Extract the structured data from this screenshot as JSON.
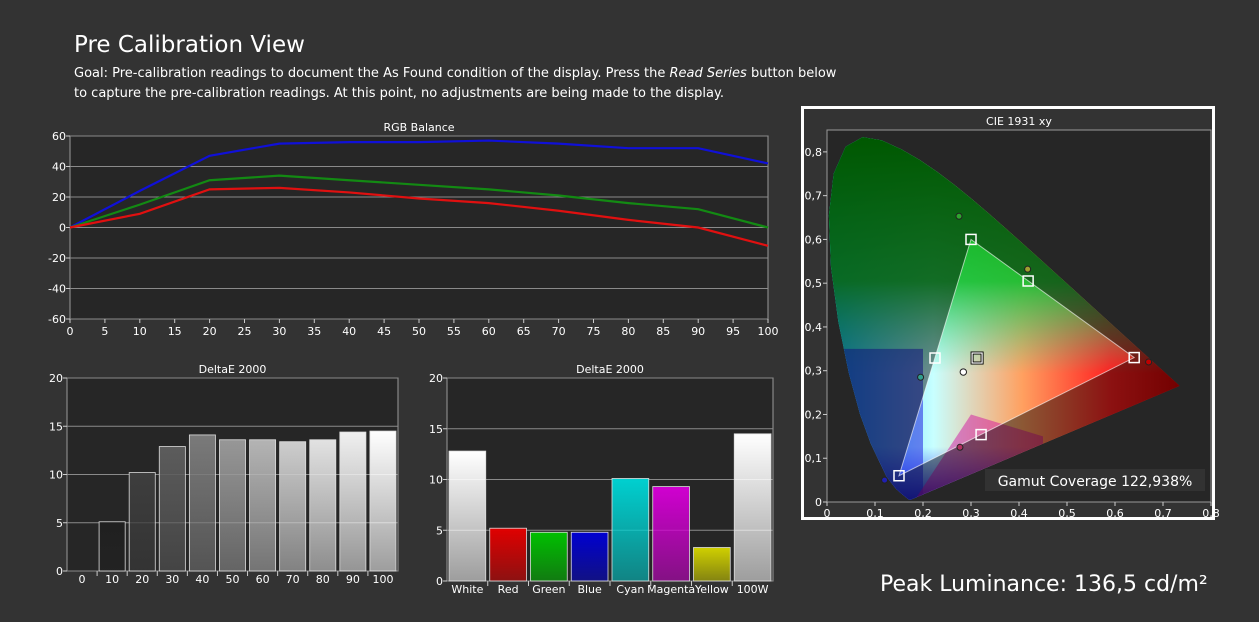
{
  "header": {
    "title": "Pre Calibration View",
    "goal_pre": "Goal: Pre-calibration readings to document the As Found condition of the display. Press the ",
    "goal_em": "Read Series",
    "goal_post": " button below to capture the pre-calibration readings. At this point, no adjustments are being made to the display."
  },
  "footer": {
    "peak_luminance": "Peak Luminance: 136,5 cd/m²"
  },
  "colors": {
    "background": "#333333",
    "plot_bg": "#262626",
    "red": "#e01010",
    "green": "#138a13",
    "blue": "#1010d8"
  },
  "chart_data": [
    {
      "id": "rgb",
      "type": "line",
      "title": "RGB Balance",
      "x": [
        0,
        10,
        20,
        30,
        40,
        50,
        60,
        70,
        80,
        90,
        100
      ],
      "xticks": [
        0,
        5,
        10,
        15,
        20,
        25,
        30,
        35,
        40,
        45,
        50,
        55,
        60,
        65,
        70,
        75,
        80,
        85,
        90,
        95,
        100
      ],
      "xlim": [
        0,
        100
      ],
      "ylim": [
        -60,
        60
      ],
      "yticks": [
        60,
        40,
        20,
        0,
        -20,
        -40,
        -60
      ],
      "grid": true,
      "series": [
        {
          "color": "#1010d8",
          "values": [
            0,
            24,
            47,
            55,
            56,
            56,
            57,
            55,
            52,
            52,
            42
          ]
        },
        {
          "color": "#138a13",
          "values": [
            0,
            15,
            31,
            34,
            31,
            28,
            25,
            21,
            16,
            12,
            0
          ]
        },
        {
          "color": "#e01010",
          "values": [
            0,
            9,
            25,
            26,
            23,
            19,
            16,
            11,
            5,
            0,
            -12
          ]
        }
      ]
    },
    {
      "id": "de_gray",
      "type": "bar",
      "title": "DeltaE 2000",
      "categories": [
        "0",
        "10",
        "20",
        "30",
        "40",
        "50",
        "60",
        "70",
        "80",
        "90",
        "100"
      ],
      "values": [
        0,
        5.1,
        10.2,
        12.9,
        14.1,
        13.6,
        13.6,
        13.4,
        13.6,
        14.4,
        14.5
      ],
      "ylim": [
        0,
        20
      ],
      "yticks": [
        20,
        15,
        10,
        5,
        0
      ],
      "bar_colors": [
        "#000000",
        "#202020",
        "#3e3e3e",
        "#5c5c5c",
        "#7a7a7a",
        "#979797",
        "#b4b4b4",
        "#cdcdcd",
        "#e2e2e2",
        "#f0f0f0",
        "#ffffff"
      ]
    },
    {
      "id": "de_color",
      "type": "bar",
      "title": "DeltaE 2000",
      "categories": [
        "White",
        "Red",
        "Green",
        "Blue",
        "Cyan",
        "Magenta",
        "Yellow",
        "100W"
      ],
      "values": [
        12.8,
        5.2,
        4.8,
        4.8,
        10.1,
        9.3,
        3.3,
        14.5
      ],
      "ylim": [
        0,
        20
      ],
      "yticks": [
        20,
        15,
        10,
        5,
        0
      ],
      "bar_colors": [
        "#ffffff",
        "#e00000",
        "#00c000",
        "#0000d0",
        "#00d0d0",
        "#d000d0",
        "#d0d000",
        "#ffffff"
      ]
    },
    {
      "id": "cie",
      "type": "scatter",
      "title": "CIE 1931 xy",
      "xlim": [
        0,
        0.8
      ],
      "ylim": [
        0,
        0.85
      ],
      "xticks": [
        "0",
        "0,1",
        "0,2",
        "0,3",
        "0,4",
        "0,5",
        "0,6",
        "0,7",
        "0,8"
      ],
      "yticks": [
        "0,8",
        "0,7",
        "0,6",
        "0,5",
        "0,4",
        "0,3",
        "0,2",
        "0,1",
        "0"
      ],
      "target_primaries": [
        [
          0.64,
          0.33
        ],
        [
          0.3,
          0.6
        ],
        [
          0.15,
          0.06
        ]
      ],
      "target_secondaries": [
        [
          0.225,
          0.329
        ],
        [
          0.321,
          0.154
        ],
        [
          0.419,
          0.505
        ]
      ],
      "white_target": [
        0.3127,
        0.329
      ],
      "measured_primaries": [
        [
          0.67,
          0.32
        ],
        [
          0.275,
          0.653
        ],
        [
          0.12,
          0.05
        ]
      ],
      "measured_secondaries": [
        [
          0.195,
          0.285
        ],
        [
          0.277,
          0.125
        ],
        [
          0.418,
          0.532
        ]
      ],
      "measured_white": [
        0.284,
        0.297
      ],
      "annotation": "Gamut Coverage 122,938%"
    }
  ]
}
